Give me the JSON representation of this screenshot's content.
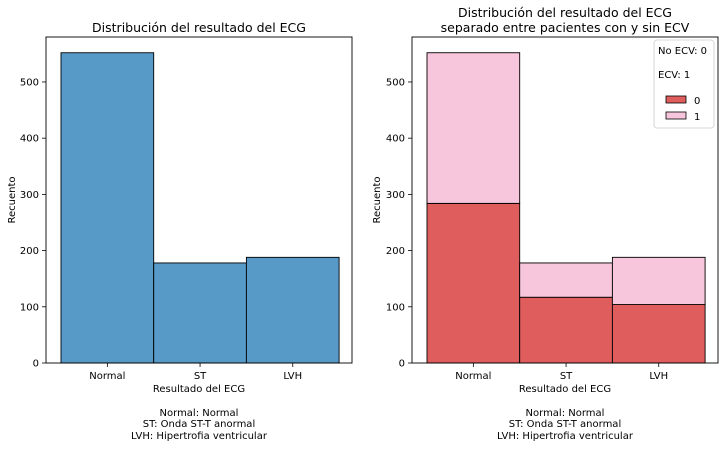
{
  "chart_data": [
    {
      "type": "bar",
      "title": "Distribución del resultado del ECG",
      "xlabel": "Resultado del ECG",
      "ylabel": "Recuento",
      "caption": [
        "Normal: Normal",
        "ST: Onda ST-T anormal",
        "LVH: Hipertrofia ventricular"
      ],
      "categories": [
        "Normal",
        "ST",
        "LVH"
      ],
      "values": [
        552,
        178,
        188
      ],
      "ylim": [
        0,
        580
      ],
      "yticks": [
        0,
        100,
        200,
        300,
        400,
        500
      ],
      "grid": false,
      "colors": {
        "bar": "#5799c7"
      }
    },
    {
      "type": "bar",
      "stacked": true,
      "title": [
        "Distribución del resultado del ECG",
        "separado entre pacientes con y sin ECV"
      ],
      "xlabel": "Resultado del ECG",
      "ylabel": "Recuento",
      "caption": [
        "Normal: Normal",
        "ST: Onda ST-T anormal",
        "LVH: Hipertrofia ventricular"
      ],
      "categories": [
        "Normal",
        "ST",
        "LVH"
      ],
      "series": [
        {
          "name": "0",
          "values": [
            284,
            117,
            104
          ],
          "color": "#e05d5e"
        },
        {
          "name": "1",
          "values": [
            268,
            61,
            84
          ],
          "color": "#f8c6dc"
        }
      ],
      "ylim": [
        0,
        580
      ],
      "yticks": [
        0,
        100,
        200,
        300,
        400,
        500
      ],
      "grid": false,
      "legend": {
        "placement": "top-right",
        "notes": [
          "No ECV: 0",
          "ECV: 1"
        ]
      }
    }
  ]
}
